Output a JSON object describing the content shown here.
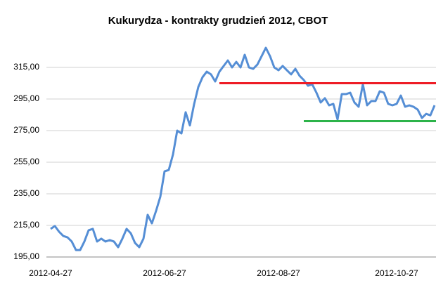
{
  "chart_data": {
    "type": "line",
    "title": "Kukurydza - kontrakty grudzień 2012, CBOT",
    "categories": [
      "2012-04-27",
      null,
      null,
      null,
      null,
      null,
      null,
      null,
      null,
      null,
      null,
      null,
      null,
      null,
      null,
      null,
      null,
      null,
      null,
      null,
      null,
      null,
      null,
      null,
      null,
      null,
      null,
      "2012-06-27",
      null,
      null,
      null,
      null,
      null,
      null,
      null,
      null,
      null,
      null,
      null,
      null,
      null,
      null,
      null,
      null,
      null,
      null,
      null,
      null,
      null,
      null,
      null,
      null,
      null,
      null,
      "2012-08-27",
      null,
      null,
      null,
      null,
      null,
      null,
      null,
      null,
      null,
      null,
      null,
      null,
      null,
      null,
      null,
      null,
      null,
      null,
      null,
      null,
      null,
      null,
      null,
      null,
      null,
      null,
      null,
      "2012-10-27",
      null,
      null,
      null,
      null,
      null,
      null,
      null,
      null,
      null
    ],
    "series": [
      {
        "color": "#558ed5",
        "values": [
          212.8,
          214.6,
          211,
          208.3,
          207.4,
          204.8,
          199.4,
          199.4,
          204.8,
          211.9,
          212.8,
          204.8,
          206.6,
          204.8,
          205.7,
          204.8,
          201.2,
          206.6,
          212.8,
          210,
          203.9,
          201.2,
          206.6,
          221.7,
          216.3,
          224.3,
          233.2,
          249.2,
          250.1,
          259.9,
          275,
          273.2,
          286.6,
          278.3,
          291.7,
          302.6,
          308.8,
          312.3,
          310.6,
          306.1,
          312.3,
          315.9,
          319.4,
          315,
          318.5,
          315,
          323,
          315,
          314.1,
          316.8,
          322.1,
          327.4,
          322.1,
          315,
          313.2,
          315.9,
          313.2,
          310.6,
          314.1,
          309.7,
          307,
          303.4,
          304.3,
          299,
          292.8,
          295.5,
          291,
          291.9,
          282.1,
          298.1,
          298.1,
          299,
          292.8,
          290.1,
          304.3,
          291,
          293.7,
          293.7,
          299.9,
          299,
          291.9,
          291,
          291.9,
          297.2,
          290.1,
          291,
          290.1,
          288.3,
          283,
          285.6,
          284.7,
          291
        ]
      }
    ],
    "reference_lines": [
      {
        "value": 305,
        "color": "#ee1c25",
        "from": 40
      },
      {
        "value": 281,
        "color": "#2db34a",
        "from": 60
      }
    ],
    "ylim": [
      195,
      330
    ],
    "yticks": [
      {
        "value": 195,
        "label": "195,00"
      },
      {
        "value": 215,
        "label": "215,00"
      },
      {
        "value": 235,
        "label": "235,00"
      },
      {
        "value": 255,
        "label": "255,00"
      },
      {
        "value": 275,
        "label": "275,00"
      },
      {
        "value": 295,
        "label": "295,00"
      },
      {
        "value": 315,
        "label": "315,00"
      }
    ],
    "grid": true
  }
}
